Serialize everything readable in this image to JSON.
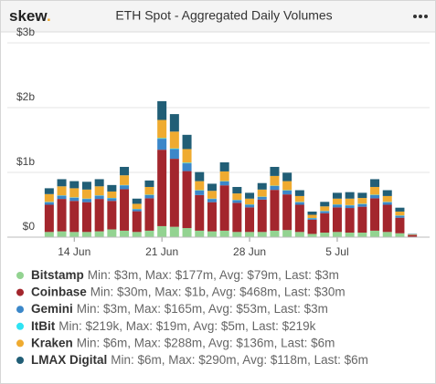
{
  "logo": "skew",
  "logo_dot": ".",
  "chart_data": {
    "type": "bar",
    "stacked": true,
    "title": "ETH Spot - Aggregated Daily Volumes",
    "categories": [
      null,
      null,
      "14 Jun",
      null,
      null,
      null,
      null,
      null,
      null,
      "21 Jun",
      null,
      null,
      null,
      null,
      null,
      null,
      "28 Jun",
      null,
      null,
      null,
      null,
      null,
      null,
      "5 Jul",
      null,
      null,
      null,
      null,
      null,
      null
    ],
    "ylim": [
      0,
      3
    ],
    "yticks": [
      {
        "value": 0,
        "label": "$0"
      },
      {
        "value": 1,
        "label": "$1b"
      },
      {
        "value": 2,
        "label": "$2b"
      },
      {
        "value": 3,
        "label": "$3b"
      }
    ],
    "grid": true,
    "series": [
      {
        "name": "Bitstamp",
        "summary": "Min: $3m, Max: $177m, Avg: $79m, Last: $3m",
        "color": "#93d391",
        "values": [
          0.08,
          0.09,
          0.08,
          0.08,
          0.09,
          0.12,
          0.1,
          0.08,
          0.1,
          0.17,
          0.16,
          0.14,
          0.1,
          0.09,
          0.1,
          0.08,
          0.08,
          0.08,
          0.1,
          0.11,
          0.08,
          0.05,
          0.07,
          0.08,
          0.07,
          0.07,
          0.1,
          0.08,
          0.06,
          0.003
        ]
      },
      {
        "name": "Coinbase",
        "summary": "Min: $30m, Max: $1b, Avg: $468m, Last: $30m",
        "color": "#a3262d",
        "values": [
          0.42,
          0.5,
          0.48,
          0.46,
          0.5,
          0.44,
          0.64,
          0.32,
          0.5,
          1.18,
          1.05,
          0.88,
          0.55,
          0.45,
          0.7,
          0.45,
          0.38,
          0.5,
          0.63,
          0.55,
          0.42,
          0.22,
          0.3,
          0.38,
          0.38,
          0.4,
          0.5,
          0.42,
          0.24,
          0.03
        ]
      },
      {
        "name": "Gemini",
        "summary": "Min: $3m, Max: $165m, Avg: $53m, Last: $3m",
        "color": "#3b87c9",
        "values": [
          0.04,
          0.05,
          0.05,
          0.05,
          0.05,
          0.04,
          0.06,
          0.03,
          0.05,
          0.17,
          0.15,
          0.12,
          0.07,
          0.05,
          0.06,
          0.04,
          0.04,
          0.04,
          0.06,
          0.06,
          0.04,
          0.02,
          0.03,
          0.04,
          0.04,
          0.04,
          0.05,
          0.04,
          0.03,
          0.003
        ]
      },
      {
        "name": "ItBit",
        "summary": "Min: $219k, Max: $19m, Avg: $5m, Last: $219k",
        "color": "#2fe3f3",
        "values": [
          0.005,
          0.005,
          0.005,
          0.005,
          0.005,
          0.005,
          0.005,
          0.005,
          0.005,
          0.01,
          0.01,
          0.01,
          0.005,
          0.005,
          0.005,
          0.005,
          0.005,
          0.005,
          0.005,
          0.005,
          0.005,
          0.005,
          0.005,
          0.005,
          0.005,
          0.005,
          0.005,
          0.005,
          0.005,
          0.0002
        ]
      },
      {
        "name": "Kraken",
        "summary": "Min: $6m, Max: $288m, Avg: $136m, Last: $6m",
        "color": "#efab30",
        "values": [
          0.12,
          0.14,
          0.14,
          0.14,
          0.14,
          0.1,
          0.15,
          0.08,
          0.12,
          0.28,
          0.26,
          0.21,
          0.14,
          0.12,
          0.15,
          0.1,
          0.09,
          0.11,
          0.15,
          0.14,
          0.09,
          0.05,
          0.07,
          0.09,
          0.1,
          0.09,
          0.12,
          0.09,
          0.06,
          0.006
        ]
      },
      {
        "name": "LMAX Digital",
        "summary": "Min: $6m, Max: $290m, Avg: $118m, Last: $6m",
        "color": "#215e76",
        "values": [
          0.09,
          0.11,
          0.11,
          0.12,
          0.11,
          0.1,
          0.13,
          0.08,
          0.1,
          0.29,
          0.27,
          0.22,
          0.14,
          0.11,
          0.14,
          0.1,
          0.09,
          0.1,
          0.14,
          0.13,
          0.09,
          0.05,
          0.07,
          0.09,
          0.1,
          0.08,
          0.12,
          0.09,
          0.06,
          0.006
        ]
      }
    ]
  }
}
